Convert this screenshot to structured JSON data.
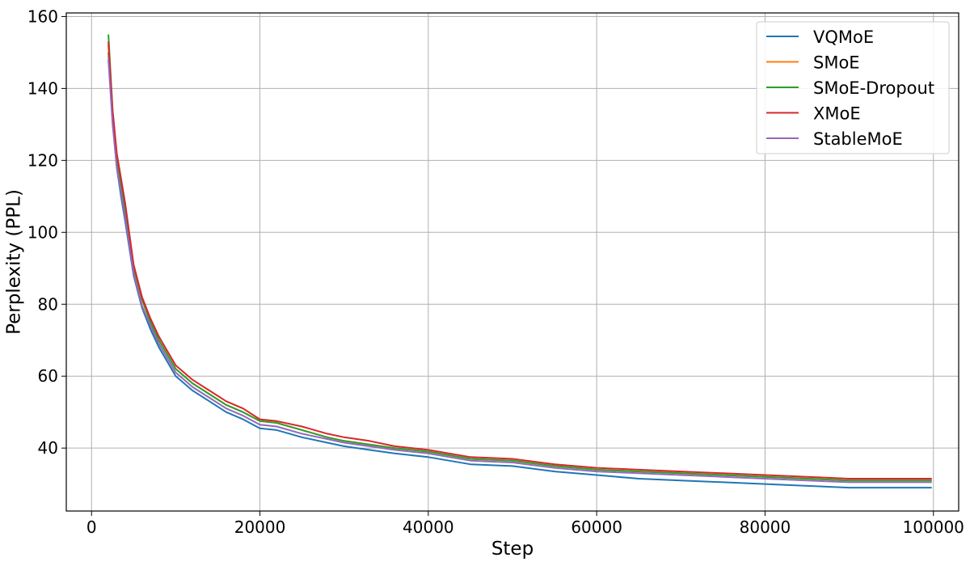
{
  "chart_data": {
    "type": "line",
    "title": "",
    "xlabel": "Step",
    "ylabel": "Perplexity (PPL)",
    "xlim": [
      -3000,
      103000
    ],
    "ylim": [
      22.5,
      161
    ],
    "xticks": [
      0,
      20000,
      40000,
      60000,
      80000,
      100000
    ],
    "yticks": [
      40,
      60,
      80,
      100,
      120,
      140,
      160
    ],
    "grid": true,
    "legend_position": "top-right",
    "x": [
      2000,
      2500,
      3000,
      3500,
      4000,
      5000,
      6000,
      7000,
      8000,
      9000,
      10000,
      12000,
      14000,
      16000,
      18000,
      20000,
      22000,
      25000,
      28000,
      30000,
      33000,
      36000,
      40000,
      45000,
      50000,
      55000,
      60000,
      65000,
      70000,
      75000,
      80000,
      85000,
      90000,
      95000,
      99800
    ],
    "series": [
      {
        "name": "VQMoE",
        "color": "#1f77b4",
        "values": [
          150,
          131,
          118,
          110,
          103,
          88,
          79,
          73,
          68,
          64,
          60,
          56,
          53,
          50,
          48,
          45.5,
          45,
          43,
          41.5,
          40.5,
          39.5,
          38.5,
          37.5,
          35.5,
          35,
          33.5,
          32.5,
          31.5,
          31,
          30.5,
          30,
          29.5,
          29,
          29,
          29
        ]
      },
      {
        "name": "SMoE",
        "color": "#ff7f0e",
        "values": [
          152,
          133,
          120,
          112,
          106,
          90,
          81,
          75,
          70,
          66,
          62,
          58,
          55,
          52,
          50,
          47.5,
          47,
          45,
          43,
          42,
          41,
          40,
          39,
          37,
          36.5,
          35,
          34,
          33.5,
          33,
          32.5,
          32,
          31.5,
          31,
          31,
          31
        ]
      },
      {
        "name": "SMoE-Dropout",
        "color": "#2ca02c",
        "values": [
          155,
          134,
          121,
          113,
          106,
          90.5,
          81.5,
          75,
          70,
          66,
          62,
          58,
          55,
          52,
          50,
          47.5,
          47,
          45,
          43,
          42,
          41,
          40,
          39,
          37,
          36.5,
          35,
          34,
          33.5,
          33,
          32.5,
          32,
          31.5,
          31,
          31,
          31
        ]
      },
      {
        "name": "XMoE",
        "color": "#d62728",
        "values": [
          153,
          134,
          122,
          115,
          108,
          91,
          82,
          76,
          71,
          67,
          63,
          59,
          56,
          53,
          51,
          48,
          47.5,
          46,
          44,
          43,
          42,
          40.5,
          39.5,
          37.5,
          37,
          35.5,
          34.5,
          34,
          33.5,
          33,
          32.5,
          32,
          31.5,
          31.5,
          31.5
        ]
      },
      {
        "name": "StableMoE",
        "color": "#9467bd",
        "values": [
          148,
          130,
          118,
          111,
          104,
          88.5,
          79.5,
          74,
          69,
          65,
          61,
          57,
          54,
          51,
          49,
          46.5,
          46,
          44,
          42.5,
          41.5,
          40.5,
          39.5,
          38.5,
          36.5,
          36,
          34.5,
          33.5,
          33,
          32.5,
          32,
          31.5,
          31,
          30.5,
          30.5,
          30.5
        ]
      }
    ]
  }
}
